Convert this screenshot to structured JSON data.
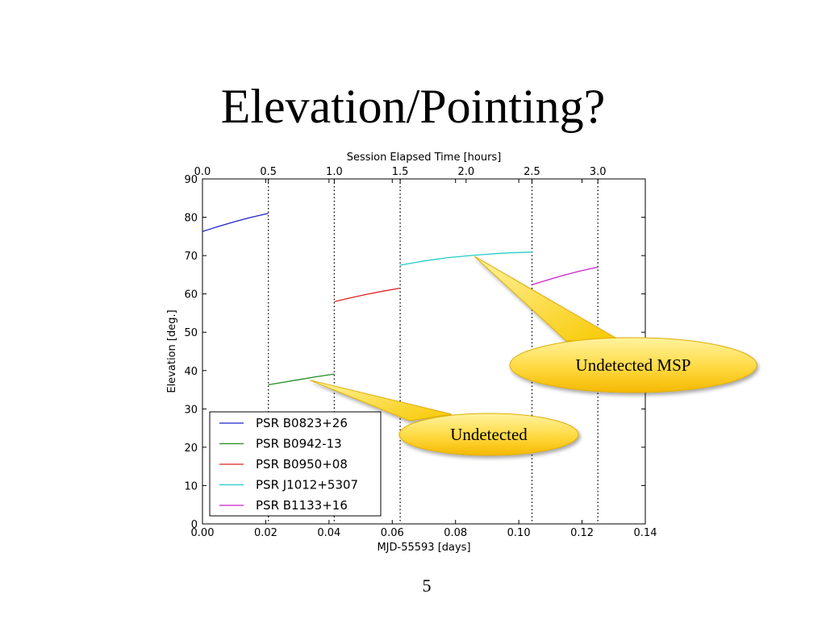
{
  "slide": {
    "title": "Elevation/Pointing?",
    "page_number": "5"
  },
  "chart_data": {
    "type": "line",
    "xlabel": "MJD-55593 [days]",
    "ylabel": "Elevation [deg.]",
    "top_xlabel": "Session Elapsed Time [hours]",
    "xlim": [
      0,
      0.14
    ],
    "ylim": [
      0,
      90
    ],
    "top_xlim": [
      0,
      3.36
    ],
    "x_ticks": [
      "0.00",
      "0.02",
      "0.04",
      "0.06",
      "0.08",
      "0.10",
      "0.12",
      "0.14"
    ],
    "y_ticks": [
      "0",
      "10",
      "20",
      "30",
      "40",
      "50",
      "60",
      "70",
      "80",
      "90"
    ],
    "top_x_ticks": [
      "0.0",
      "0.5",
      "1.0",
      "1.5",
      "2.0",
      "2.5",
      "3.0"
    ],
    "vlines_hours": [
      0.5,
      1.0,
      1.5,
      2.5,
      3.0
    ],
    "grid": false,
    "legend_position": "lower-left",
    "series": [
      {
        "name": "PSR B0823+26",
        "color": "#2222cc",
        "x": [
          0.0,
          0.005,
          0.01,
          0.015,
          0.0208
        ],
        "y": [
          76.3,
          77.6,
          78.8,
          79.9,
          81.0
        ]
      },
      {
        "name": "PSR B0942-13",
        "color": "#228b22",
        "x": [
          0.0208,
          0.026,
          0.031,
          0.036,
          0.0417
        ],
        "y": [
          36.3,
          37.0,
          37.7,
          38.4,
          39.1
        ]
      },
      {
        "name": "PSR B0950+08",
        "color": "#dd2222",
        "x": [
          0.0417,
          0.047,
          0.052,
          0.057,
          0.0625
        ],
        "y": [
          58.0,
          59.0,
          59.9,
          60.7,
          61.5
        ]
      },
      {
        "name": "PSR J1012+5307",
        "color": "#22cccc",
        "x": [
          0.0625,
          0.07,
          0.078,
          0.086,
          0.094,
          0.1,
          0.1042
        ],
        "y": [
          67.5,
          68.6,
          69.5,
          70.1,
          70.6,
          70.8,
          70.9
        ]
      },
      {
        "name": "PSR B1133+16",
        "color": "#cc22cc",
        "x": [
          0.1042,
          0.109,
          0.114,
          0.119,
          0.125
        ],
        "y": [
          62.4,
          63.6,
          64.8,
          65.9,
          67.0
        ]
      }
    ],
    "annotations": [
      {
        "text": "Undetected MSP",
        "target_x": 0.086,
        "target_y": 69.8
      },
      {
        "text": "Undetected",
        "target_x": 0.034,
        "target_y": 37.5
      }
    ]
  }
}
